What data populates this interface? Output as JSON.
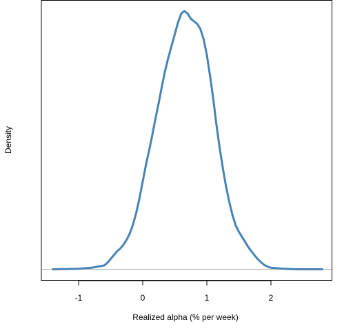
{
  "chart_data": {
    "type": "line",
    "title": "",
    "xlabel": "Realized alpha (% per week)",
    "ylabel": "Density",
    "xlim": [
      -1.5,
      2.8
    ],
    "ylim": [
      -0.02,
      1.05
    ],
    "grid": false,
    "legend": "none",
    "x_ticks": [
      {
        "value": -1,
        "label": "-1"
      },
      {
        "value": 0,
        "label": "0"
      },
      {
        "value": 1,
        "label": "1"
      },
      {
        "value": 2,
        "label": "2"
      }
    ],
    "y_ticks_shown": false,
    "baseline": {
      "y": 0,
      "color": "#b3b3b3"
    },
    "series": [
      {
        "color": "#4682b4",
        "x": [
          -1.4,
          -1.0,
          -0.8,
          -0.6,
          -0.55,
          -0.5,
          -0.45,
          -0.4,
          -0.35,
          -0.3,
          -0.25,
          -0.2,
          -0.15,
          -0.1,
          -0.05,
          0.0,
          0.05,
          0.1,
          0.15,
          0.2,
          0.25,
          0.3,
          0.35,
          0.4,
          0.45,
          0.5,
          0.55,
          0.6,
          0.65,
          0.7,
          0.75,
          0.8,
          0.85,
          0.9,
          0.95,
          1.0,
          1.05,
          1.1,
          1.15,
          1.2,
          1.25,
          1.3,
          1.35,
          1.4,
          1.45,
          1.5,
          1.55,
          1.6,
          1.65,
          1.7,
          1.75,
          1.8,
          1.85,
          1.9,
          1.95,
          2.0,
          2.1,
          2.2,
          2.3,
          2.4,
          2.6,
          2.8
        ],
        "y": [
          0.0,
          0.002,
          0.006,
          0.015,
          0.025,
          0.04,
          0.055,
          0.07,
          0.08,
          0.095,
          0.115,
          0.14,
          0.175,
          0.22,
          0.275,
          0.34,
          0.405,
          0.46,
          0.52,
          0.585,
          0.645,
          0.71,
          0.77,
          0.82,
          0.865,
          0.91,
          0.955,
          0.99,
          1.0,
          0.99,
          0.97,
          0.96,
          0.95,
          0.93,
          0.89,
          0.83,
          0.75,
          0.66,
          0.56,
          0.47,
          0.39,
          0.32,
          0.26,
          0.21,
          0.17,
          0.145,
          0.125,
          0.105,
          0.085,
          0.068,
          0.052,
          0.038,
          0.026,
          0.016,
          0.01,
          0.006,
          0.004,
          0.002,
          0.001,
          0.0,
          0.0,
          0.0
        ]
      }
    ]
  }
}
